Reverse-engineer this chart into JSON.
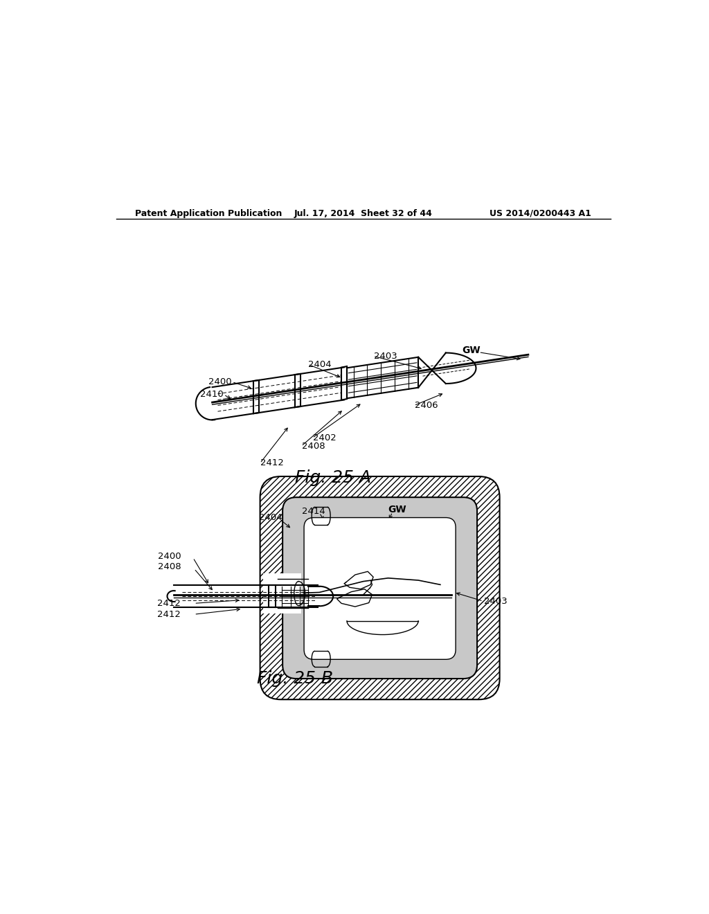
{
  "header_left": "Patent Application Publication",
  "header_mid": "Jul. 17, 2014  Sheet 32 of 44",
  "header_right": "US 2014/0200443 A1",
  "fig_a_caption": "Fig. 25 A",
  "fig_b_caption": "Fig. 25 B",
  "bg_color": "#ffffff",
  "line_color": "#000000",
  "gray_fill": "#c8c8c8",
  "hatch_fill": "#e8e8e8"
}
